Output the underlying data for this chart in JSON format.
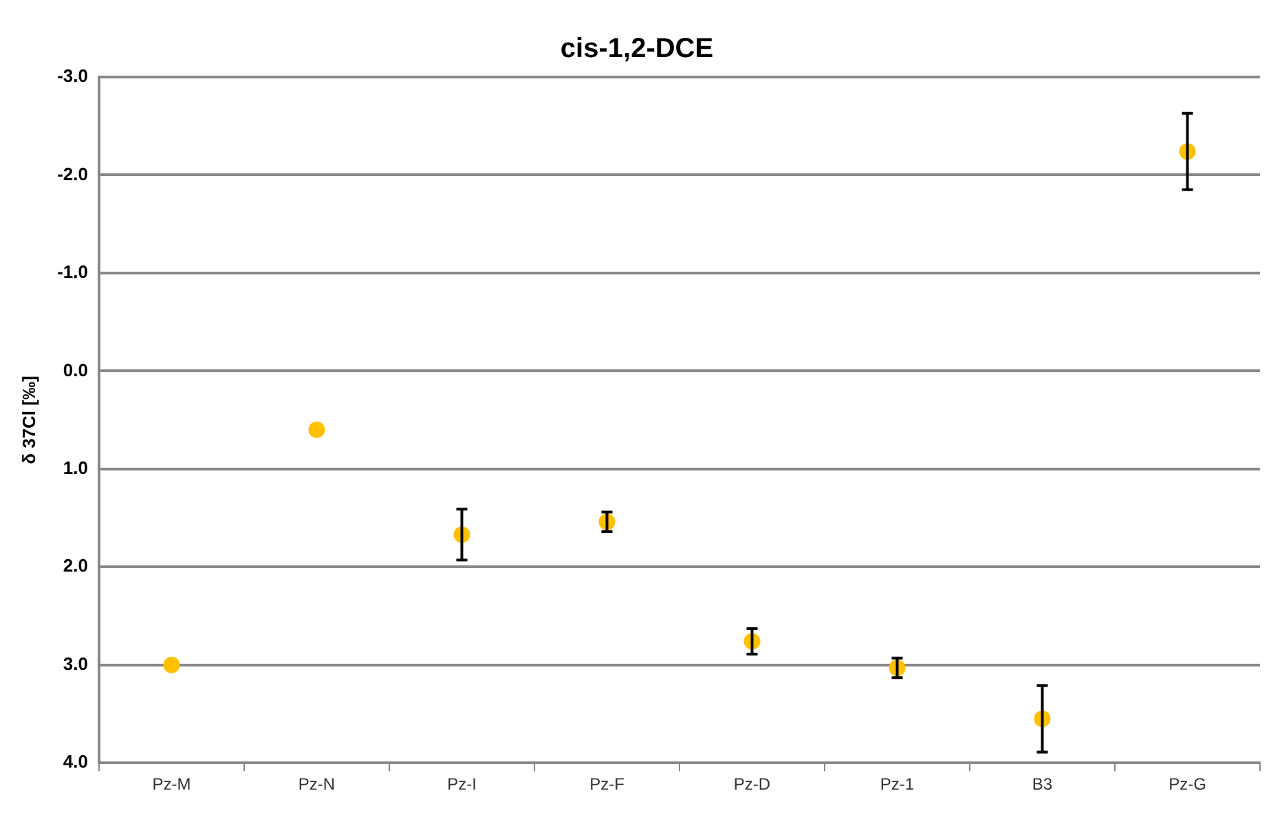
{
  "chart_data": {
    "type": "scatter",
    "title": "cis-1,2-DCE",
    "ylabel": "δ 37Cl [‰]",
    "categories": [
      "Pz-M",
      "Pz-N",
      "Pz-I",
      "Pz-F",
      "Pz-D",
      "Pz-1",
      "B3",
      "Pz-G"
    ],
    "values": [
      3.0,
      0.6,
      1.67,
      1.54,
      2.76,
      3.03,
      3.55,
      -2.24
    ],
    "errors": [
      null,
      null,
      0.26,
      0.1,
      0.13,
      0.1,
      0.34,
      0.39
    ],
    "color": "#ffc000",
    "marker": "circle",
    "grid": "y",
    "ylim": [
      4,
      -3
    ],
    "yticks": [
      {
        "value": -3,
        "label": "-3.0"
      },
      {
        "value": -2,
        "label": "-2.0"
      },
      {
        "value": -1,
        "label": "-1.0"
      },
      {
        "value": 0,
        "label": "0.0"
      },
      {
        "value": 1,
        "label": "1.0"
      },
      {
        "value": 2,
        "label": "2.0"
      },
      {
        "value": 3,
        "label": "3.0"
      },
      {
        "value": 4,
        "label": "4.0"
      }
    ]
  }
}
